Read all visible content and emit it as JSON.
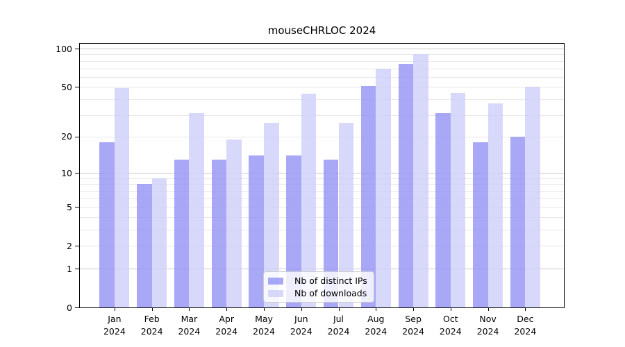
{
  "chart_data": {
    "type": "bar",
    "title": "mouseCHRLOC 2024",
    "categories": [
      "Jan",
      "Feb",
      "Mar",
      "Apr",
      "May",
      "Jun",
      "Jul",
      "Aug",
      "Sep",
      "Oct",
      "Nov",
      "Dec"
    ],
    "year_label": "2024",
    "series": [
      {
        "name": "Nb of distinct IPs",
        "color": "rgba(146,146,245,0.8)",
        "values": [
          18,
          8,
          13,
          13,
          14,
          14,
          13,
          51,
          76,
          31,
          18,
          20
        ]
      },
      {
        "name": "Nb of downloads",
        "color": "rgba(206,206,249,0.8)",
        "values": [
          49,
          9,
          31,
          19,
          26,
          44,
          26,
          70,
          90,
          45,
          37,
          50
        ]
      }
    ],
    "yscale": "log1p",
    "yticks": [
      0,
      1,
      2,
      5,
      10,
      20,
      50,
      100
    ],
    "grid_major": [
      1,
      10,
      100
    ],
    "grid_minor": [
      2,
      3,
      4,
      5,
      6,
      7,
      8,
      9,
      20,
      30,
      40,
      50,
      60,
      70,
      80,
      90
    ],
    "ylim": [
      0,
      110
    ],
    "grid": "horizontal, major and minor, on",
    "legend_position": "lower center inside plot",
    "colors": {
      "spine": "#000000",
      "grid_minor": "#e7e7e7",
      "grid_major": "#c8c8c8",
      "legend_border": "#cccccc",
      "legend_background": "rgba(255,255,255,0.8)"
    }
  }
}
